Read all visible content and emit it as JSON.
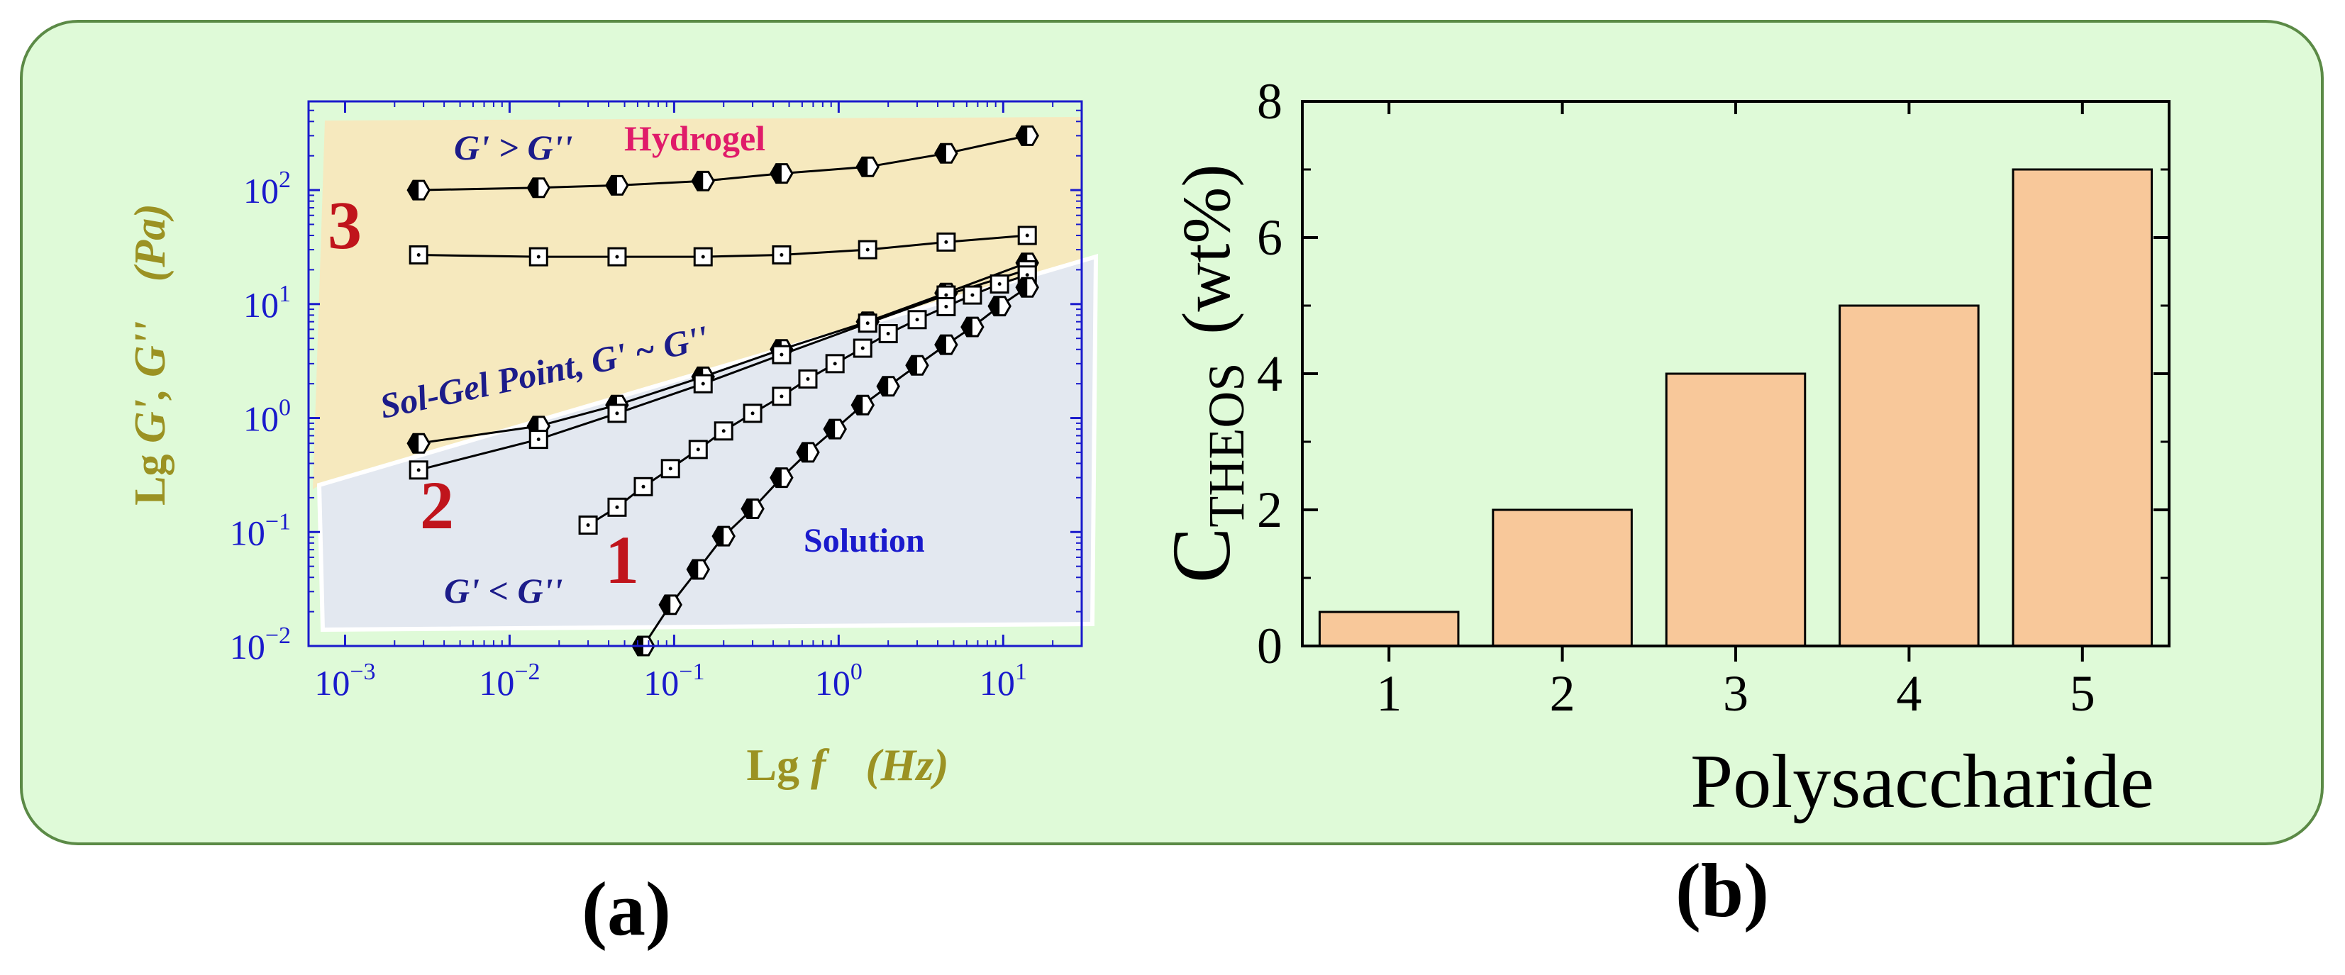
{
  "colors": {
    "panel_bg": "#dffad8",
    "panel_border": "#5b8a46",
    "axis_blue": "#1a1acc",
    "gel_region": "#f6e9be",
    "solution_region": "#e3e8f0",
    "olive_label": "#9b9223",
    "navy_text": "#1c1c8a",
    "pink_text": "#e01b6a",
    "red_number": "#c0141c",
    "bar_fill": "#f8c89a"
  },
  "chart_data": [
    {
      "type": "scatter",
      "panel_label": "(a)",
      "xlabel_prefix": "Lg",
      "xlabel_var": "f",
      "xlabel_unit": "(Hz)",
      "ylabel_prefix": "Lg",
      "ylabel_var": "G', G''",
      "ylabel_unit": "(Pa)",
      "xscale": "log",
      "yscale": "log",
      "xlim": [
        0.0006,
        30
      ],
      "ylim": [
        0.01,
        600
      ],
      "x_ticks": [
        0.001,
        0.01,
        0.1,
        1,
        10
      ],
      "y_ticks": [
        0.01,
        0.1,
        1,
        10,
        100
      ],
      "tick_base": "10",
      "x_tick_exponents": [
        "−3",
        "−2",
        "−1",
        "0",
        "1"
      ],
      "y_tick_exponents": [
        "−2",
        "−1",
        "0",
        "1",
        "2"
      ],
      "regions": [
        {
          "name": "Hydrogel",
          "condition": "G' > G''"
        },
        {
          "name": "Solution",
          "condition": "G' < G''"
        }
      ],
      "annotations": {
        "gel_condition": "G' > G''",
        "gel_name": "Hydrogel",
        "sol_gel": "Sol-Gel Point, G' ~ G''",
        "solution_name": "Solution",
        "sol_condition": "G' < G''",
        "label_1": "1",
        "label_2": "2",
        "label_3": "3"
      },
      "series": [
        {
          "name": "3 G'",
          "marker": "half-filled-hexagon",
          "x": [
            0.0028,
            0.015,
            0.045,
            0.15,
            0.45,
            1.5,
            4.5,
            14
          ],
          "y": [
            100,
            105,
            110,
            120,
            140,
            160,
            210,
            300
          ]
        },
        {
          "name": "3 G''",
          "marker": "dotted-square",
          "x": [
            0.0028,
            0.015,
            0.045,
            0.15,
            0.45,
            1.5,
            4.5,
            14
          ],
          "y": [
            27,
            26,
            26,
            26,
            27,
            30,
            35,
            40
          ]
        },
        {
          "name": "2 G'",
          "marker": "half-filled-hexagon",
          "x": [
            0.0028,
            0.015,
            0.045,
            0.15,
            0.45,
            1.5,
            4.5,
            14
          ],
          "y": [
            0.6,
            0.85,
            1.3,
            2.3,
            4.0,
            7.0,
            12.5,
            23
          ]
        },
        {
          "name": "2 G''",
          "marker": "dotted-square",
          "x": [
            0.0028,
            0.015,
            0.045,
            0.15,
            0.45,
            1.5,
            4.5,
            14
          ],
          "y": [
            0.35,
            0.65,
            1.1,
            2.0,
            3.6,
            6.8,
            12,
            20
          ]
        },
        {
          "name": "1 G''",
          "marker": "dotted-square",
          "x": [
            0.03,
            0.045,
            0.065,
            0.095,
            0.14,
            0.2,
            0.3,
            0.45,
            0.65,
            0.95,
            1.4,
            2.0,
            3.0,
            4.5,
            6.5,
            9.5,
            14
          ],
          "y": [
            0.115,
            0.165,
            0.25,
            0.36,
            0.53,
            0.77,
            1.1,
            1.55,
            2.2,
            3.0,
            4.1,
            5.5,
            7.3,
            9.5,
            12,
            15,
            18
          ]
        },
        {
          "name": "1 G'",
          "marker": "half-filled-hexagon",
          "x": [
            0.065,
            0.095,
            0.14,
            0.2,
            0.3,
            0.45,
            0.65,
            0.95,
            1.4,
            2.0,
            3.0,
            4.5,
            6.5,
            9.5,
            14
          ],
          "y": [
            0.01,
            0.023,
            0.047,
            0.092,
            0.16,
            0.3,
            0.5,
            0.8,
            1.3,
            1.9,
            2.9,
            4.4,
            6.3,
            9.6,
            14
          ]
        }
      ]
    },
    {
      "type": "bar",
      "panel_label": "(b)",
      "categories": [
        "1",
        "2",
        "3",
        "4",
        "5"
      ],
      "values": [
        0.5,
        2,
        4,
        5,
        7
      ],
      "xlabel": "Polysaccharide",
      "ylabel_main": "C",
      "ylabel_sub": "THEOS",
      "ylabel_unit": "(wt%)",
      "ylim": [
        0,
        8
      ],
      "y_ticks": [
        "0",
        "2",
        "4",
        "6",
        "8"
      ]
    }
  ]
}
